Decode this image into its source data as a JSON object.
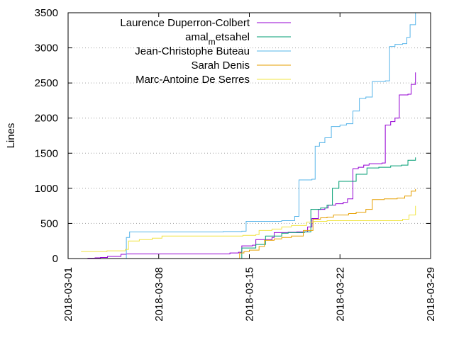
{
  "chart_data": {
    "type": "line",
    "ylabel": "Lines",
    "xlabel": "",
    "title": "",
    "x_is_date": true,
    "xlim": [
      "2018-03-01",
      "2018-03-29"
    ],
    "ylim": [
      0,
      3500
    ],
    "x_ticks": [
      "2018-03-01",
      "2018-03-08",
      "2018-03-15",
      "2018-03-22",
      "2018-03-29"
    ],
    "y_ticks": [
      0,
      500,
      1000,
      1500,
      2000,
      2500,
      3000,
      3500
    ],
    "grid": "y-dotted",
    "legend_position": "top-left",
    "series": [
      {
        "name": "Laurence Duperron-Colbert",
        "color": "#9400d3",
        "points": [
          [
            "2018-03-02 12:00",
            5
          ],
          [
            "2018-03-03 02:00",
            10
          ],
          [
            "2018-03-03 12:00",
            15
          ],
          [
            "2018-03-04 01:00",
            30
          ],
          [
            "2018-03-05 02:00",
            60
          ],
          [
            "2018-03-05 12:00",
            65
          ],
          [
            "2018-03-13 12:00",
            80
          ],
          [
            "2018-03-14 04:00",
            90
          ],
          [
            "2018-03-14 10:00",
            180
          ],
          [
            "2018-03-15 06:00",
            190
          ],
          [
            "2018-03-15 12:00",
            270
          ],
          [
            "2018-03-16 18:00",
            300
          ],
          [
            "2018-03-16 22:00",
            370
          ],
          [
            "2018-03-18 00:00",
            375
          ],
          [
            "2018-03-18 16:00",
            380
          ],
          [
            "2018-03-19 12:00",
            450
          ],
          [
            "2018-03-19 20:00",
            570
          ],
          [
            "2018-03-20 08:00",
            700
          ],
          [
            "2018-03-20 20:00",
            720
          ],
          [
            "2018-03-21 02:00",
            760
          ],
          [
            "2018-03-21 16:00",
            780
          ],
          [
            "2018-03-22 06:00",
            800
          ],
          [
            "2018-03-22 14:00",
            850
          ],
          [
            "2018-03-23 00:00",
            1280
          ],
          [
            "2018-03-23 10:00",
            1300
          ],
          [
            "2018-03-23 20:00",
            1330
          ],
          [
            "2018-03-24 06:00",
            1350
          ],
          [
            "2018-03-25 06:00",
            1360
          ],
          [
            "2018-03-25 12:00",
            1900
          ],
          [
            "2018-03-25 22:00",
            1950
          ],
          [
            "2018-03-26 06:00",
            2000
          ],
          [
            "2018-03-26 14:00",
            2330
          ],
          [
            "2018-03-27 06:00",
            2340
          ],
          [
            "2018-03-27 12:00",
            2480
          ],
          [
            "2018-03-27 20:00",
            2650
          ]
        ]
      },
      {
        "name": "amal_metsahel",
        "color": "#009e73",
        "points": [
          [
            "2018-03-14 00:00",
            0
          ],
          [
            "2018-03-14 10:00",
            150
          ],
          [
            "2018-03-15 12:00",
            200
          ],
          [
            "2018-03-16 06:00",
            320
          ],
          [
            "2018-03-17 12:00",
            360
          ],
          [
            "2018-03-18 00:00",
            370
          ],
          [
            "2018-03-19 06:00",
            380
          ],
          [
            "2018-03-19 18:00",
            700
          ],
          [
            "2018-03-20 12:00",
            720
          ],
          [
            "2018-03-21 00:00",
            760
          ],
          [
            "2018-03-21 10:00",
            1000
          ],
          [
            "2018-03-21 22:00",
            1100
          ],
          [
            "2018-03-22 20:00",
            1100
          ],
          [
            "2018-03-23 06:00",
            1200
          ],
          [
            "2018-03-24 02:00",
            1290
          ],
          [
            "2018-03-25 00:00",
            1300
          ],
          [
            "2018-03-25 22:00",
            1320
          ],
          [
            "2018-03-26 18:00",
            1330
          ],
          [
            "2018-03-27 06:00",
            1400
          ],
          [
            "2018-03-27 20:00",
            1440
          ]
        ]
      },
      {
        "name": "Jean-Christophe Buteau",
        "color": "#56b4e9",
        "points": [
          [
            "2018-03-05 00:00",
            0
          ],
          [
            "2018-03-05 12:00",
            300
          ],
          [
            "2018-03-05 18:00",
            380
          ],
          [
            "2018-03-13 00:00",
            385
          ],
          [
            "2018-03-14 10:00",
            390
          ],
          [
            "2018-03-14 18:00",
            530
          ],
          [
            "2018-03-17 12:00",
            540
          ],
          [
            "2018-03-18 12:00",
            600
          ],
          [
            "2018-03-18 20:00",
            1120
          ],
          [
            "2018-03-19 20:00",
            1130
          ],
          [
            "2018-03-20 02:00",
            1600
          ],
          [
            "2018-03-20 10:00",
            1650
          ],
          [
            "2018-03-20 20:00",
            1720
          ],
          [
            "2018-03-21 08:00",
            1880
          ],
          [
            "2018-03-22 00:00",
            1900
          ],
          [
            "2018-03-22 12:00",
            1920
          ],
          [
            "2018-03-23 00:00",
            2100
          ],
          [
            "2018-03-23 12:00",
            2280
          ],
          [
            "2018-03-24 00:00",
            2300
          ],
          [
            "2018-03-24 12:00",
            2520
          ],
          [
            "2018-03-25 12:00",
            2530
          ],
          [
            "2018-03-25 20:00",
            3020
          ],
          [
            "2018-03-26 06:00",
            3050
          ],
          [
            "2018-03-26 20:00",
            3060
          ],
          [
            "2018-03-27 04:00",
            3150
          ],
          [
            "2018-03-27 10:00",
            3330
          ],
          [
            "2018-03-27 20:00",
            3500
          ]
        ]
      },
      {
        "name": "Sarah Denis",
        "color": "#e69f00",
        "points": [
          [
            "2018-03-14 00:00",
            0
          ],
          [
            "2018-03-14 06:00",
            80
          ],
          [
            "2018-03-14 14:00",
            100
          ],
          [
            "2018-03-15 00:00",
            120
          ],
          [
            "2018-03-15 18:00",
            170
          ],
          [
            "2018-03-16 04:00",
            260
          ],
          [
            "2018-03-16 22:00",
            280
          ],
          [
            "2018-03-17 12:00",
            300
          ],
          [
            "2018-03-18 06:00",
            320
          ],
          [
            "2018-03-19 04:00",
            400
          ],
          [
            "2018-03-19 22:00",
            560
          ],
          [
            "2018-03-20 12:00",
            580
          ],
          [
            "2018-03-21 00:00",
            590
          ],
          [
            "2018-03-21 12:00",
            620
          ],
          [
            "2018-03-22 16:00",
            640
          ],
          [
            "2018-03-23 06:00",
            660
          ],
          [
            "2018-03-24 00:00",
            700
          ],
          [
            "2018-03-24 12:00",
            840
          ],
          [
            "2018-03-25 10:00",
            850
          ],
          [
            "2018-03-26 10:00",
            860
          ],
          [
            "2018-03-27 00:00",
            890
          ],
          [
            "2018-03-27 12:00",
            960
          ],
          [
            "2018-03-27 20:00",
            990
          ]
        ]
      },
      {
        "name": "Marc-Antoine De Serres",
        "color": "#f0e442",
        "points": [
          [
            "2018-03-02 00:00",
            100
          ],
          [
            "2018-03-04 00:00",
            110
          ],
          [
            "2018-03-05 10:00",
            130
          ],
          [
            "2018-03-05 16:00",
            250
          ],
          [
            "2018-03-06 12:00",
            270
          ],
          [
            "2018-03-07 12:00",
            290
          ],
          [
            "2018-03-08 06:00",
            320
          ],
          [
            "2018-03-14 12:00",
            330
          ],
          [
            "2018-03-15 12:00",
            340
          ],
          [
            "2018-03-15 18:00",
            400
          ],
          [
            "2018-03-16 18:00",
            420
          ],
          [
            "2018-03-17 12:00",
            450
          ],
          [
            "2018-03-18 06:00",
            470
          ],
          [
            "2018-03-19 10:00",
            520
          ],
          [
            "2018-03-20 00:00",
            530
          ],
          [
            "2018-03-21 00:00",
            540
          ],
          [
            "2018-03-26 20:00",
            560
          ],
          [
            "2018-03-27 08:00",
            620
          ],
          [
            "2018-03-27 20:00",
            750
          ]
        ]
      }
    ]
  }
}
